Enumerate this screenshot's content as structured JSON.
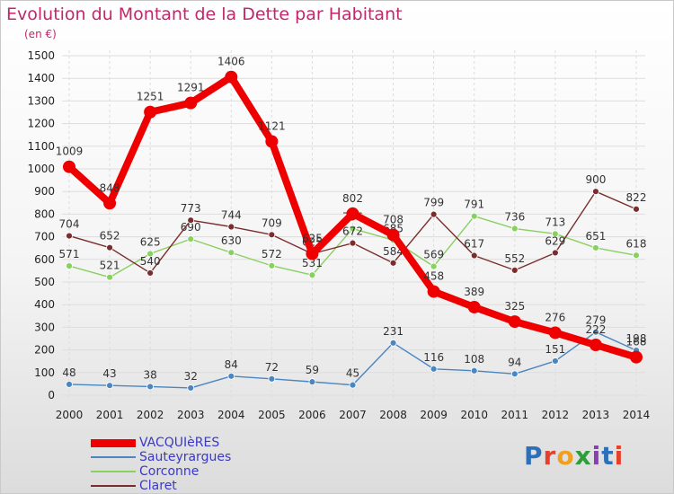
{
  "header": {
    "title": "Evolution du Montant de la Dette par Habitant",
    "subtitle": "(en €)"
  },
  "colors": {
    "title": "#c0286b",
    "legend_text": "#3a39c8",
    "axis_text": "#222222",
    "grid": "#dddddd"
  },
  "logo": {
    "text": "Proxiti"
  },
  "chart_data": {
    "type": "line",
    "x": [
      "2000",
      "2001",
      "2002",
      "2003",
      "2004",
      "2005",
      "2006",
      "2007",
      "2008",
      "2009",
      "2010",
      "2011",
      "2012",
      "2013",
      "2014"
    ],
    "ylim": [
      0,
      1500
    ],
    "yticks": [
      0,
      100,
      200,
      300,
      400,
      500,
      600,
      700,
      800,
      900,
      1000,
      1100,
      1200,
      1300,
      1400,
      1500
    ],
    "grid": true,
    "legend_position": "bottom-left",
    "series": [
      {
        "name": "VACQUIèRES",
        "color": "#ee0000",
        "emphasis": true,
        "values": [
          1009,
          848,
          1251,
          1291,
          1406,
          1121,
          625,
          802,
          708,
          458,
          389,
          325,
          276,
          222,
          168
        ]
      },
      {
        "name": "Sauteyrargues",
        "color": "#4a86c0",
        "emphasis": false,
        "values": [
          48,
          43,
          38,
          32,
          84,
          72,
          59,
          45,
          231,
          116,
          108,
          94,
          151,
          279,
          198
        ]
      },
      {
        "name": "Corconne",
        "color": "#88d060",
        "emphasis": false,
        "values": [
          571,
          521,
          625,
          690,
          630,
          572,
          531,
          736,
          685,
          569,
          791,
          736,
          713,
          651,
          618
        ]
      },
      {
        "name": "Claret",
        "color": "#7a2d2d",
        "emphasis": false,
        "values": [
          704,
          652,
          540,
          773,
          744,
          709,
          625,
          672,
          584,
          799,
          617,
          552,
          629,
          900,
          822
        ]
      }
    ]
  }
}
